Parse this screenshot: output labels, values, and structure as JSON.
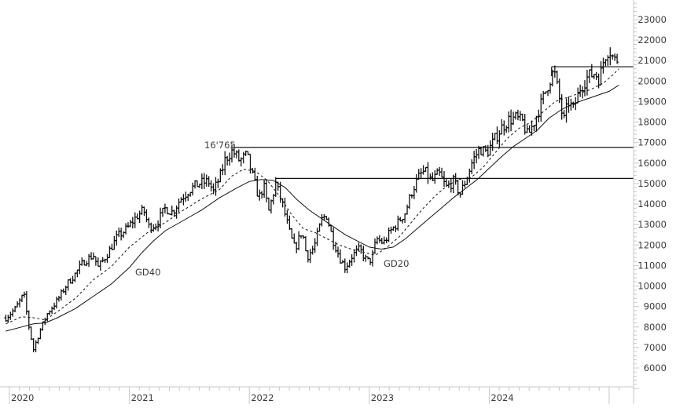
{
  "chart_data": {
    "type": "ohlc",
    "title": "",
    "xlabel": "",
    "ylabel": "",
    "frequency": "weekly",
    "x_ticks": [
      {
        "label": "2020",
        "year": 2020.0
      },
      {
        "label": "2021",
        "year": 2021.0
      },
      {
        "label": "2022",
        "year": 2022.0
      },
      {
        "label": "2023",
        "year": 2023.0
      },
      {
        "label": "2024",
        "year": 2024.0
      },
      {
        "label": "",
        "year": 2025.0
      }
    ],
    "xlim": [
      2020.0,
      2025.1
    ],
    "y_ticks": [
      6000,
      7000,
      8000,
      9000,
      10000,
      11000,
      12000,
      13000,
      14000,
      15000,
      16000,
      17000,
      18000,
      19000,
      20000,
      21000,
      22000,
      23000
    ],
    "ylim": [
      5000,
      23900
    ],
    "grid": false,
    "legend": null,
    "annotations": [
      {
        "text": "16'765",
        "x": 2021.82,
        "y": 16765,
        "kind": "price-label"
      },
      {
        "text": "GD40",
        "x": 2021.0,
        "y": 10900,
        "kind": "series-label"
      },
      {
        "text": "GD20",
        "x": 2023.1,
        "y": 11150,
        "kind": "series-label"
      }
    ],
    "horizontal_lines": [
      {
        "y": 16765,
        "x_start": 2021.87,
        "x_end": 2025.18
      },
      {
        "y": 15250,
        "x_start": 2022.22,
        "x_end": 2025.18
      },
      {
        "y": 20700,
        "x_start": 2024.52,
        "x_end": 2025.18
      }
    ],
    "price_keypoints": [
      [
        2019.97,
        8450
      ],
      [
        2020.05,
        8900
      ],
      [
        2020.12,
        9600
      ],
      [
        2020.16,
        8100
      ],
      [
        2020.2,
        6900
      ],
      [
        2020.26,
        7900
      ],
      [
        2020.32,
        8700
      ],
      [
        2020.4,
        9300
      ],
      [
        2020.48,
        10100
      ],
      [
        2020.55,
        10600
      ],
      [
        2020.62,
        11200
      ],
      [
        2020.7,
        11500
      ],
      [
        2020.74,
        10900
      ],
      [
        2020.82,
        11600
      ],
      [
        2020.9,
        12400
      ],
      [
        2020.98,
        12800
      ],
      [
        2021.06,
        13400
      ],
      [
        2021.12,
        13700
      ],
      [
        2021.16,
        12900
      ],
      [
        2021.22,
        13000
      ],
      [
        2021.3,
        13800
      ],
      [
        2021.36,
        13600
      ],
      [
        2021.42,
        14200
      ],
      [
        2021.5,
        14700
      ],
      [
        2021.58,
        15000
      ],
      [
        2021.66,
        15100
      ],
      [
        2021.7,
        14600
      ],
      [
        2021.76,
        15400
      ],
      [
        2021.8,
        16200
      ],
      [
        2021.86,
        16600
      ],
      [
        2021.92,
        16100
      ],
      [
        2021.98,
        16400
      ],
      [
        2022.02,
        15500
      ],
      [
        2022.08,
        14300
      ],
      [
        2022.12,
        14900
      ],
      [
        2022.16,
        13600
      ],
      [
        2022.22,
        15000
      ],
      [
        2022.28,
        13900
      ],
      [
        2022.34,
        12500
      ],
      [
        2022.38,
        11800
      ],
      [
        2022.44,
        12700
      ],
      [
        2022.48,
        11400
      ],
      [
        2022.54,
        11900
      ],
      [
        2022.6,
        13200
      ],
      [
        2022.64,
        13500
      ],
      [
        2022.7,
        12200
      ],
      [
        2022.76,
        11300
      ],
      [
        2022.8,
        10900
      ],
      [
        2022.86,
        11500
      ],
      [
        2022.92,
        11800
      ],
      [
        2022.98,
        11200
      ],
      [
        2023.02,
        11300
      ],
      [
        2023.06,
        12300
      ],
      [
        2023.12,
        12100
      ],
      [
        2023.18,
        12700
      ],
      [
        2023.24,
        13100
      ],
      [
        2023.3,
        13600
      ],
      [
        2023.36,
        14700
      ],
      [
        2023.42,
        15400
      ],
      [
        2023.46,
        15600
      ],
      [
        2023.52,
        15100
      ],
      [
        2023.58,
        15500
      ],
      [
        2023.64,
        14800
      ],
      [
        2023.7,
        15100
      ],
      [
        2023.76,
        14500
      ],
      [
        2023.82,
        15400
      ],
      [
        2023.86,
        16100
      ],
      [
        2023.92,
        16700
      ],
      [
        2023.98,
        16500
      ],
      [
        2024.04,
        17100
      ],
      [
        2024.1,
        17700
      ],
      [
        2024.16,
        18100
      ],
      [
        2024.22,
        18200
      ],
      [
        2024.28,
        18000
      ],
      [
        2024.32,
        17300
      ],
      [
        2024.38,
        18100
      ],
      [
        2024.44,
        19000
      ],
      [
        2024.5,
        20000
      ],
      [
        2024.54,
        20500
      ],
      [
        2024.58,
        19300
      ],
      [
        2024.62,
        18000
      ],
      [
        2024.66,
        19000
      ],
      [
        2024.7,
        18600
      ],
      [
        2024.76,
        19700
      ],
      [
        2024.82,
        20200
      ],
      [
        2024.88,
        20400
      ],
      [
        2024.92,
        20100
      ],
      [
        2024.96,
        21200
      ],
      [
        2025.0,
        21600
      ],
      [
        2025.04,
        21000
      ],
      [
        2025.08,
        21100
      ]
    ],
    "series": [
      {
        "name": "GD20",
        "style": "dashed",
        "description": "20-week moving average",
        "points": [
          [
            2019.97,
            8150
          ],
          [
            2020.1,
            8500
          ],
          [
            2020.2,
            8450
          ],
          [
            2020.3,
            8350
          ],
          [
            2020.4,
            8750
          ],
          [
            2020.55,
            9400
          ],
          [
            2020.7,
            10300
          ],
          [
            2020.85,
            10950
          ],
          [
            2021.0,
            11900
          ],
          [
            2021.15,
            12600
          ],
          [
            2021.3,
            13100
          ],
          [
            2021.45,
            13700
          ],
          [
            2021.6,
            14250
          ],
          [
            2021.75,
            14700
          ],
          [
            2021.85,
            15350
          ],
          [
            2021.95,
            15700
          ],
          [
            2022.05,
            15600
          ],
          [
            2022.15,
            15150
          ],
          [
            2022.25,
            14400
          ],
          [
            2022.35,
            13500
          ],
          [
            2022.45,
            12800
          ],
          [
            2022.55,
            12600
          ],
          [
            2022.65,
            12300
          ],
          [
            2022.75,
            12000
          ],
          [
            2022.85,
            11800
          ],
          [
            2022.95,
            11650
          ],
          [
            2023.05,
            11500
          ],
          [
            2023.15,
            11900
          ],
          [
            2023.25,
            12400
          ],
          [
            2023.35,
            13100
          ],
          [
            2023.45,
            13800
          ],
          [
            2023.55,
            14400
          ],
          [
            2023.65,
            14900
          ],
          [
            2023.75,
            15200
          ],
          [
            2023.85,
            15300
          ],
          [
            2023.95,
            15800
          ],
          [
            2024.05,
            16500
          ],
          [
            2024.15,
            17200
          ],
          [
            2024.25,
            17700
          ],
          [
            2024.35,
            18000
          ],
          [
            2024.45,
            18500
          ],
          [
            2024.55,
            19000
          ],
          [
            2024.65,
            19200
          ],
          [
            2024.75,
            19400
          ],
          [
            2024.85,
            19600
          ],
          [
            2024.95,
            19900
          ],
          [
            2025.03,
            20300
          ],
          [
            2025.08,
            20600
          ]
        ]
      },
      {
        "name": "GD40",
        "style": "solid",
        "description": "40-week moving average",
        "points": [
          [
            2019.97,
            7800
          ],
          [
            2020.1,
            8000
          ],
          [
            2020.2,
            8150
          ],
          [
            2020.3,
            8200
          ],
          [
            2020.4,
            8450
          ],
          [
            2020.55,
            8900
          ],
          [
            2020.7,
            9500
          ],
          [
            2020.85,
            10100
          ],
          [
            2021.0,
            10900
          ],
          [
            2021.1,
            11600
          ],
          [
            2021.2,
            12200
          ],
          [
            2021.3,
            12700
          ],
          [
            2021.45,
            13200
          ],
          [
            2021.6,
            13700
          ],
          [
            2021.75,
            14300
          ],
          [
            2021.9,
            14800
          ],
          [
            2022.0,
            15100
          ],
          [
            2022.1,
            15200
          ],
          [
            2022.2,
            15150
          ],
          [
            2022.3,
            14800
          ],
          [
            2022.4,
            14200
          ],
          [
            2022.5,
            13700
          ],
          [
            2022.6,
            13300
          ],
          [
            2022.7,
            12900
          ],
          [
            2022.8,
            12500
          ],
          [
            2022.9,
            12200
          ],
          [
            2023.0,
            11900
          ],
          [
            2023.1,
            11800
          ],
          [
            2023.2,
            11900
          ],
          [
            2023.3,
            12300
          ],
          [
            2023.4,
            12800
          ],
          [
            2023.5,
            13300
          ],
          [
            2023.6,
            13800
          ],
          [
            2023.7,
            14300
          ],
          [
            2023.8,
            14750
          ],
          [
            2023.9,
            15200
          ],
          [
            2024.0,
            15750
          ],
          [
            2024.1,
            16300
          ],
          [
            2024.2,
            16800
          ],
          [
            2024.3,
            17200
          ],
          [
            2024.4,
            17600
          ],
          [
            2024.5,
            18200
          ],
          [
            2024.6,
            18600
          ],
          [
            2024.7,
            18900
          ],
          [
            2024.8,
            19100
          ],
          [
            2024.9,
            19300
          ],
          [
            2025.0,
            19500
          ],
          [
            2025.08,
            19800
          ]
        ]
      }
    ]
  }
}
